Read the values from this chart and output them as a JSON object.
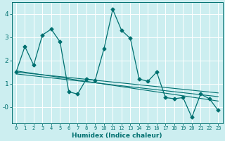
{
  "xlabel": "Humidex (Indice chaleur)",
  "bg_color": "#cceef0",
  "grid_color": "#ffffff",
  "line_color": "#007070",
  "xlim": [
    -0.5,
    23.5
  ],
  "ylim": [
    -0.7,
    4.5
  ],
  "xtick_labels": [
    "0",
    "1",
    "2",
    "3",
    "4",
    "5",
    "6",
    "7",
    "8",
    "9",
    "10",
    "11",
    "12",
    "13",
    "14",
    "15",
    "16",
    "17",
    "18",
    "19",
    "20",
    "21",
    "22",
    "23"
  ],
  "ytick_positions": [
    0,
    1,
    2,
    3,
    4
  ],
  "ytick_labels": [
    "-0",
    "1",
    "2",
    "3",
    "4"
  ],
  "series1_x": [
    0,
    1,
    2,
    3,
    4,
    5,
    6,
    7,
    8,
    9,
    10,
    11,
    12,
    13,
    14,
    15,
    16,
    17,
    18,
    19,
    20,
    21,
    22,
    23
  ],
  "series1_y": [
    1.5,
    2.6,
    1.8,
    3.1,
    3.35,
    2.8,
    0.65,
    0.55,
    1.2,
    1.15,
    2.5,
    4.2,
    3.3,
    2.95,
    1.2,
    1.1,
    1.5,
    0.4,
    0.35,
    0.4,
    -0.45,
    0.55,
    0.35,
    -0.15
  ],
  "series2_x": [
    0,
    23
  ],
  "series2_y": [
    1.55,
    0.25
  ],
  "series3_x": [
    0,
    23
  ],
  "series3_y": [
    1.5,
    0.6
  ],
  "series4_x": [
    0,
    23
  ],
  "series4_y": [
    1.42,
    0.44
  ]
}
